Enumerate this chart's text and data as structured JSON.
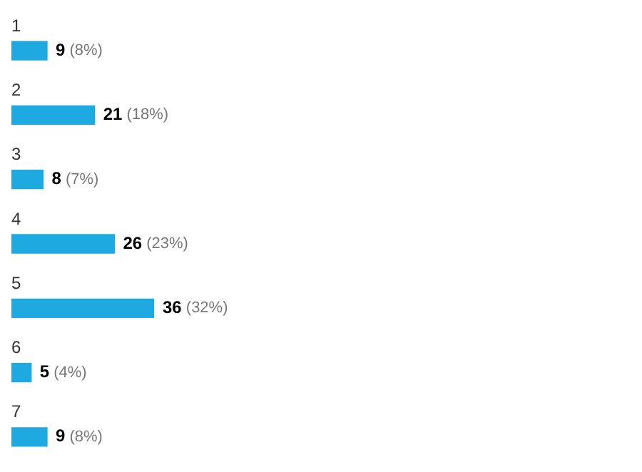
{
  "chart_data": {
    "type": "bar",
    "orientation": "horizontal",
    "categories": [
      "1",
      "2",
      "3",
      "4",
      "5",
      "6",
      "7"
    ],
    "values": [
      9,
      21,
      8,
      26,
      36,
      5,
      9
    ],
    "color": "#1fa9e1",
    "value_labels": [
      "9 (8%)",
      "21 (18%)",
      "8 (7%)",
      "26 (23%)",
      "36 (32%)",
      "5 (4%)",
      "9 (8%)"
    ]
  }
}
